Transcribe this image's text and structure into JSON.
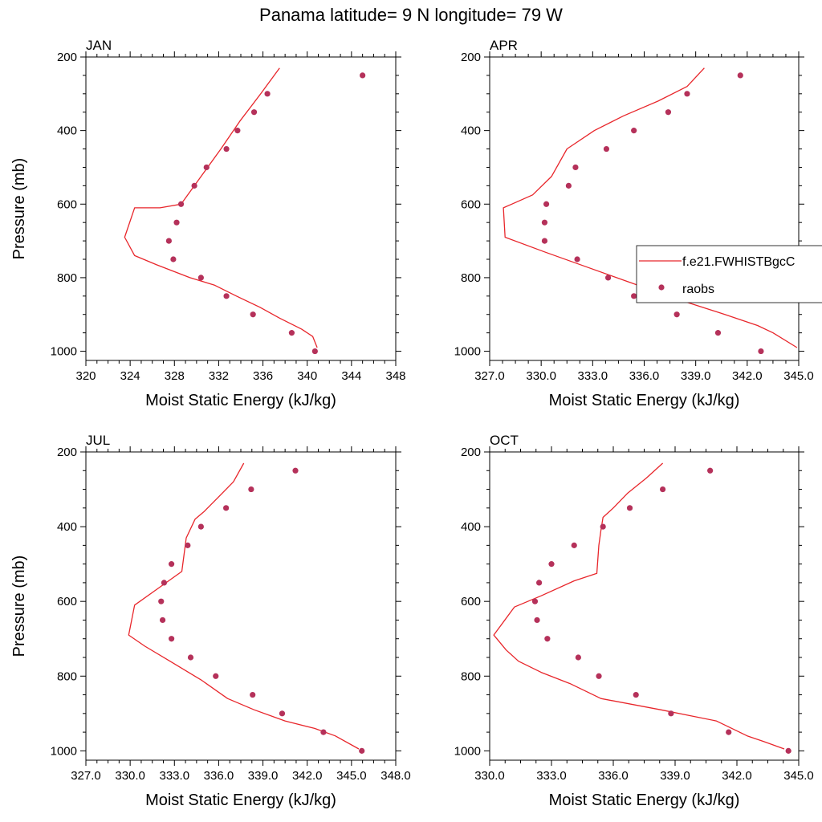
{
  "figure": {
    "title": "Panama  latitude= 9 N longitude= 79 W"
  },
  "colors": {
    "model_line": "#e8262b",
    "obs_marker": "#b5315a",
    "axis": "#000000"
  },
  "legend": {
    "entries": [
      {
        "label": "f.e21.FWHISTBgcC",
        "style": "line"
      },
      {
        "label": "raobs",
        "style": "marker"
      }
    ]
  },
  "chart_data": [
    {
      "type": "line",
      "panel": "JAN",
      "xlabel": "Moist Static Energy (kJ/kg)",
      "ylabel": "Pressure (mb)",
      "xlim": [
        320,
        348
      ],
      "ylim": [
        1025,
        200
      ],
      "xticks": [
        320,
        324,
        328,
        332,
        336,
        340,
        344,
        348
      ],
      "xticklabels": [
        "320",
        "324",
        "328",
        "332",
        "336",
        "340",
        "344",
        "348"
      ],
      "yticks": [
        200,
        400,
        600,
        800,
        1000
      ],
      "yticklabels": [
        "200",
        "400",
        "600",
        "800",
        "1000"
      ],
      "series": [
        {
          "name": "f.e21.FWHISTBgcC",
          "style": "line",
          "x": [
            337.5,
            335.8,
            333.9,
            332.2,
            330.4,
            328.6,
            326.7,
            324.4,
            323.5,
            324.4,
            326.4,
            329.4,
            331.6,
            333.6,
            335.7,
            337.5,
            339.5,
            340.5,
            340.9
          ],
          "y": [
            230,
            300,
            375,
            450,
            525,
            600,
            610,
            610,
            690,
            740,
            765,
            800,
            820,
            850,
            880,
            910,
            940,
            960,
            990
          ]
        },
        {
          "name": "raobs",
          "style": "marker",
          "x": [
            345.0,
            336.4,
            335.2,
            333.7,
            332.7,
            330.9,
            329.8,
            328.6,
            328.2,
            327.5,
            327.9,
            330.4,
            332.7,
            335.1,
            338.6,
            340.7
          ],
          "y": [
            250,
            300,
            350,
            400,
            450,
            500,
            550,
            600,
            650,
            700,
            750,
            800,
            850,
            900,
            950,
            1000
          ]
        }
      ]
    },
    {
      "type": "line",
      "panel": "APR",
      "xlabel": "Moist Static Energy (kJ/kg)",
      "ylabel": "",
      "xlim": [
        327,
        345
      ],
      "ylim": [
        1025,
        200
      ],
      "xticks": [
        327,
        330,
        333,
        336,
        339,
        342,
        345
      ],
      "xticklabels": [
        "327.0",
        "330.0",
        "333.0",
        "336.0",
        "339.0",
        "342.0",
        "345.0"
      ],
      "yticks": [
        200,
        400,
        600,
        800,
        1000
      ],
      "yticklabels": [
        "200",
        "400",
        "600",
        "800",
        "1000"
      ],
      "series": [
        {
          "name": "f.e21.FWHISTBgcC",
          "style": "line",
          "x": [
            339.5,
            338.5,
            336.8,
            334.8,
            333.1,
            331.5,
            330.6,
            329.5,
            327.8,
            327.9,
            330.2,
            332.6,
            335.0,
            336.8,
            338.7,
            340.7,
            342.6,
            343.5,
            344.9
          ],
          "y": [
            230,
            280,
            320,
            360,
            400,
            450,
            525,
            575,
            610,
            690,
            730,
            770,
            810,
            840,
            870,
            900,
            930,
            950,
            990
          ]
        },
        {
          "name": "raobs",
          "style": "marker",
          "x": [
            341.6,
            338.5,
            337.4,
            335.4,
            333.8,
            332.0,
            331.6,
            330.3,
            330.2,
            330.2,
            332.1,
            333.9,
            335.4,
            337.9,
            340.3,
            342.8
          ],
          "y": [
            250,
            300,
            350,
            400,
            450,
            500,
            550,
            600,
            650,
            700,
            750,
            800,
            850,
            900,
            950,
            1000
          ]
        }
      ]
    },
    {
      "type": "line",
      "panel": "JUL",
      "xlabel": "Moist Static Energy (kJ/kg)",
      "ylabel": "Pressure (mb)",
      "xlim": [
        327,
        348
      ],
      "ylim": [
        1025,
        200
      ],
      "xticks": [
        327,
        330,
        333,
        336,
        339,
        342,
        345,
        348
      ],
      "xticklabels": [
        "327.0",
        "330.0",
        "333.0",
        "336.0",
        "339.0",
        "342.0",
        "345.0",
        "348.0"
      ],
      "yticks": [
        200,
        400,
        600,
        800,
        1000
      ],
      "yticklabels": [
        "200",
        "400",
        "600",
        "800",
        "1000"
      ],
      "series": [
        {
          "name": "f.e21.FWHISTBgcC",
          "style": "line",
          "x": [
            337.7,
            337.0,
            336.0,
            335.0,
            334.4,
            333.8,
            333.5,
            331.9,
            330.3,
            329.9,
            331.0,
            332.7,
            334.8,
            336.6,
            338.4,
            340.5,
            342.5,
            343.9,
            345.5
          ],
          "y": [
            230,
            280,
            320,
            360,
            380,
            430,
            520,
            565,
            610,
            690,
            720,
            760,
            810,
            860,
            890,
            920,
            940,
            960,
            995
          ]
        },
        {
          "name": "raobs",
          "style": "marker",
          "x": [
            341.2,
            338.2,
            336.5,
            334.8,
            333.9,
            332.8,
            332.3,
            332.1,
            332.2,
            332.8,
            334.1,
            335.8,
            338.3,
            340.3,
            343.1,
            345.7
          ],
          "y": [
            250,
            300,
            350,
            400,
            450,
            500,
            550,
            600,
            650,
            700,
            750,
            800,
            850,
            900,
            950,
            1000
          ]
        }
      ]
    },
    {
      "type": "line",
      "panel": "OCT",
      "xlabel": "Moist Static Energy (kJ/kg)",
      "ylabel": "",
      "xlim": [
        330,
        345
      ],
      "ylim": [
        1025,
        200
      ],
      "xticks": [
        330,
        333,
        336,
        339,
        342,
        345
      ],
      "xticklabels": [
        "330.0",
        "333.0",
        "336.0",
        "339.0",
        "342.0",
        "345.0"
      ],
      "yticks": [
        200,
        400,
        600,
        800,
        1000
      ],
      "yticklabels": [
        "200",
        "400",
        "600",
        "800",
        "1000"
      ],
      "series": [
        {
          "name": "f.e21.FWHISTBgcC",
          "style": "line",
          "x": [
            338.4,
            337.6,
            336.7,
            336.0,
            335.5,
            335.4,
            335.3,
            335.2,
            334.1,
            332.5,
            331.2,
            330.2,
            330.8,
            331.4,
            332.5,
            333.9,
            335.4,
            338.3,
            341.0,
            342.5,
            343.3,
            344.3
          ],
          "y": [
            230,
            270,
            310,
            350,
            375,
            410,
            450,
            525,
            545,
            585,
            615,
            690,
            730,
            760,
            790,
            820,
            860,
            890,
            920,
            960,
            975,
            995
          ]
        },
        {
          "name": "raobs",
          "style": "marker",
          "x": [
            340.7,
            338.4,
            336.8,
            335.5,
            334.1,
            333.0,
            332.4,
            332.2,
            332.3,
            332.8,
            334.3,
            335.3,
            337.1,
            338.8,
            341.6,
            344.5
          ],
          "y": [
            250,
            300,
            350,
            400,
            450,
            500,
            550,
            600,
            650,
            700,
            750,
            800,
            850,
            900,
            950,
            1000
          ]
        }
      ]
    }
  ]
}
